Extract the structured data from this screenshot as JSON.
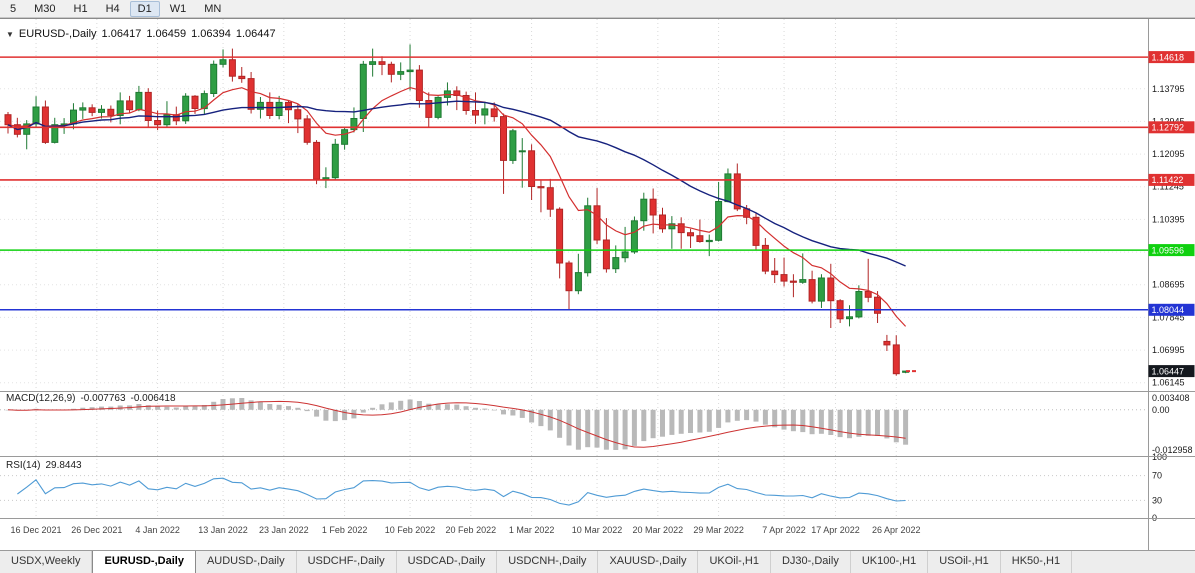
{
  "toolbar": {
    "buttons": [
      "5",
      "M30",
      "H1",
      "H4",
      "D1",
      "W1",
      "MN"
    ],
    "active": "D1"
  },
  "chart_header": {
    "dropdown_icon": "▼",
    "symbol": "EURUSD-,Daily",
    "open": "1.06417",
    "high": "1.06459",
    "low": "1.06394",
    "close": "1.06447"
  },
  "price_axis": {
    "grid_labels": [
      "1.13795",
      "1.12945",
      "1.12095",
      "1.11245",
      "1.10395",
      "1.09545",
      "1.08695",
      "1.07845",
      "1.06995",
      "1.06145"
    ],
    "current": {
      "value": "1.06447",
      "price": 1.06447,
      "bg": "#14181e",
      "text_color": "#ffffff"
    }
  },
  "macd": {
    "label": "MACD(12,26,9)",
    "value_main": "-0.007763",
    "value_signal": "-0.006418",
    "axis_max": "0.003408",
    "axis_zero": "0.00",
    "axis_min": "-0.012958",
    "fast": 12,
    "slow": 26,
    "signal_period": 9
  },
  "rsi": {
    "label": "RSI(14)",
    "value": "29.8443",
    "period": 14,
    "axis_labels": [
      {
        "text": "100",
        "v": 100
      },
      {
        "text": "70",
        "v": 70
      },
      {
        "text": "30",
        "v": 30
      },
      {
        "text": "0",
        "v": 0
      }
    ],
    "levels": [
      70,
      30
    ]
  },
  "time_axis": {
    "labels": [
      {
        "text": "16 Dec 2021",
        "i": 3
      },
      {
        "text": "26 Dec 2021",
        "i": 9.5
      },
      {
        "text": "4 Jan 2022",
        "i": 16
      },
      {
        "text": "13 Jan 2022",
        "i": 23
      },
      {
        "text": "23 Jan 2022",
        "i": 29.5
      },
      {
        "text": "1 Feb 2022",
        "i": 36
      },
      {
        "text": "10 Feb 2022",
        "i": 43
      },
      {
        "text": "20 Feb 2022",
        "i": 49.5
      },
      {
        "text": "1 Mar 2022",
        "i": 56
      },
      {
        "text": "10 Mar 2022",
        "i": 63
      },
      {
        "text": "20 Mar 2022",
        "i": 69.5
      },
      {
        "text": "29 Mar 2022",
        "i": 76
      },
      {
        "text": "7 Apr 2022",
        "i": 83
      },
      {
        "text": "17 Apr 2022",
        "i": 88.5
      },
      {
        "text": "26 Apr 2022",
        "i": 95
      }
    ]
  },
  "tabs": {
    "active_index": 1,
    "items": [
      "USDX,Weekly",
      "EURUSD-,Daily",
      "AUDUSD-,Daily",
      "USDCHF-,Daily",
      "USDCAD-,Daily",
      "USDCNH-,Daily",
      "XAUUSD-,Daily",
      "UKOil-,H1",
      "DJ30-,Daily",
      "UK100-,H1",
      "USOil-,H1",
      "HK50-,H1"
    ]
  },
  "colors": {
    "candle_up": "#2f9e44",
    "candle_up_stroke": "#1e7a33",
    "candle_down": "#e03131",
    "candle_down_stroke": "#b02525",
    "ma_fast": "#d32f2f",
    "ma_slow": "#16227e",
    "macd_hist": "#b9b9b9",
    "macd_signal": "#cc3333",
    "rsi_line": "#4f9bd5",
    "level_red": "#e03131",
    "level_green": "#0fd10f",
    "level_blue": "#2334d4",
    "grid_v": "#d9d9d9",
    "grid_h": "#e3e3e3",
    "separator": "#9a9a9a"
  },
  "chart_data": {
    "type": "candlestick",
    "symbol": "EURUSD-",
    "timeframe": "Daily",
    "ylim": [
      1.0593,
      1.1561
    ],
    "hlines": [
      {
        "label": "1.14618",
        "price": 1.14618,
        "color": "#e03131",
        "role": "resistance"
      },
      {
        "label": "1.12792",
        "price": 1.12792,
        "color": "#e03131",
        "role": "resistance"
      },
      {
        "label": "1.11422",
        "price": 1.11422,
        "color": "#e03131",
        "role": "resistance"
      },
      {
        "label": "1.09596",
        "price": 1.09596,
        "color": "#0fd10f",
        "role": "level"
      },
      {
        "label": "1.08044",
        "price": 1.08044,
        "color": "#2334d4",
        "role": "support"
      }
    ],
    "overlays": [
      {
        "name": "MA fast",
        "type": "ema",
        "period": 10,
        "color": "#d32f2f"
      },
      {
        "name": "MA slow",
        "type": "sma",
        "period": 30,
        "color": "#16227e"
      }
    ],
    "ohlc": [
      [
        "2021-12-13",
        1.1312,
        1.1319,
        1.1263,
        1.1286
      ],
      [
        "2021-12-14",
        1.1286,
        1.1304,
        1.1253,
        1.1261
      ],
      [
        "2021-12-15",
        1.1261,
        1.1298,
        1.1222,
        1.1288
      ],
      [
        "2021-12-16",
        1.1288,
        1.136,
        1.128,
        1.1332
      ],
      [
        "2021-12-17",
        1.1332,
        1.1349,
        1.1236,
        1.124
      ],
      [
        "2021-12-20",
        1.124,
        1.1304,
        1.1237,
        1.1286
      ],
      [
        "2021-12-21",
        1.1286,
        1.1303,
        1.1262,
        1.1288
      ],
      [
        "2021-12-22",
        1.1288,
        1.1342,
        1.1274,
        1.1324
      ],
      [
        "2021-12-23",
        1.1324,
        1.1344,
        1.1301,
        1.133
      ],
      [
        "2021-12-24",
        1.133,
        1.1339,
        1.1308,
        1.1318
      ],
      [
        "2021-12-27",
        1.1318,
        1.1337,
        1.1302,
        1.1326
      ],
      [
        "2021-12-28",
        1.1326,
        1.1336,
        1.1292,
        1.131
      ],
      [
        "2021-12-29",
        1.131,
        1.137,
        1.1287,
        1.1348
      ],
      [
        "2021-12-30",
        1.1348,
        1.1361,
        1.1316,
        1.1325
      ],
      [
        "2021-12-31",
        1.1325,
        1.1387,
        1.1321,
        1.137
      ],
      [
        "2022-01-03",
        1.137,
        1.1381,
        1.1279,
        1.1297
      ],
      [
        "2022-01-04",
        1.1297,
        1.1323,
        1.1272,
        1.1286
      ],
      [
        "2022-01-05",
        1.1286,
        1.1347,
        1.128,
        1.1312
      ],
      [
        "2022-01-06",
        1.1312,
        1.1333,
        1.1285,
        1.1296
      ],
      [
        "2022-01-07",
        1.1296,
        1.1368,
        1.1288,
        1.136
      ],
      [
        "2022-01-10",
        1.136,
        1.1363,
        1.1314,
        1.1328
      ],
      [
        "2022-01-11",
        1.1328,
        1.1375,
        1.1313,
        1.1367
      ],
      [
        "2022-01-12",
        1.1367,
        1.1453,
        1.1358,
        1.1443
      ],
      [
        "2022-01-13",
        1.1443,
        1.1482,
        1.1435,
        1.1455
      ],
      [
        "2022-01-14",
        1.1455,
        1.1484,
        1.1398,
        1.1412
      ],
      [
        "2022-01-17",
        1.1412,
        1.1436,
        1.1395,
        1.1406
      ],
      [
        "2022-01-18",
        1.1406,
        1.1423,
        1.1315,
        1.1326
      ],
      [
        "2022-01-19",
        1.1326,
        1.1358,
        1.1302,
        1.1344
      ],
      [
        "2022-01-20",
        1.1344,
        1.137,
        1.1301,
        1.131
      ],
      [
        "2022-01-21",
        1.131,
        1.1361,
        1.13,
        1.1344
      ],
      [
        "2022-01-24",
        1.1344,
        1.135,
        1.129,
        1.1325
      ],
      [
        "2022-01-25",
        1.1325,
        1.134,
        1.1264,
        1.1301
      ],
      [
        "2022-01-26",
        1.1301,
        1.1311,
        1.1234,
        1.124
      ],
      [
        "2022-01-27",
        1.124,
        1.1246,
        1.1131,
        1.1144
      ],
      [
        "2022-01-28",
        1.1144,
        1.1175,
        1.1121,
        1.1148
      ],
      [
        "2022-01-31",
        1.1148,
        1.1249,
        1.1141,
        1.1235
      ],
      [
        "2022-02-01",
        1.1235,
        1.1281,
        1.1221,
        1.1273
      ],
      [
        "2022-02-02",
        1.1273,
        1.1331,
        1.1266,
        1.1302
      ],
      [
        "2022-02-03",
        1.1302,
        1.1452,
        1.1267,
        1.1443
      ],
      [
        "2022-02-04",
        1.1443,
        1.1484,
        1.1411,
        1.145
      ],
      [
        "2022-02-07",
        1.145,
        1.1464,
        1.1415,
        1.1443
      ],
      [
        "2022-02-08",
        1.1443,
        1.145,
        1.1396,
        1.1417
      ],
      [
        "2022-02-09",
        1.1417,
        1.1448,
        1.1402,
        1.1424
      ],
      [
        "2022-02-10",
        1.1424,
        1.1495,
        1.1375,
        1.1428
      ],
      [
        "2022-02-11",
        1.1428,
        1.1441,
        1.133,
        1.1349
      ],
      [
        "2022-02-14",
        1.1349,
        1.137,
        1.1279,
        1.1305
      ],
      [
        "2022-02-15",
        1.1305,
        1.136,
        1.13,
        1.1357
      ],
      [
        "2022-02-16",
        1.1357,
        1.1396,
        1.1336,
        1.1374
      ],
      [
        "2022-02-17",
        1.1374,
        1.1386,
        1.1324,
        1.1362
      ],
      [
        "2022-02-18",
        1.1362,
        1.1372,
        1.1312,
        1.1323
      ],
      [
        "2022-02-21",
        1.1323,
        1.137,
        1.1288,
        1.1311
      ],
      [
        "2022-02-22",
        1.1311,
        1.1343,
        1.1287,
        1.1327
      ],
      [
        "2022-02-23",
        1.1327,
        1.1344,
        1.1294,
        1.1307
      ],
      [
        "2022-02-24",
        1.1307,
        1.1315,
        1.1106,
        1.1193
      ],
      [
        "2022-02-25",
        1.1193,
        1.1275,
        1.1184,
        1.127
      ],
      [
        "2022-02-28",
        1.1216,
        1.1251,
        1.1122,
        1.1218
      ],
      [
        "2022-03-01",
        1.1218,
        1.1235,
        1.109,
        1.1125
      ],
      [
        "2022-03-02",
        1.1125,
        1.1141,
        1.1058,
        1.1122
      ],
      [
        "2022-03-03",
        1.1122,
        1.1145,
        1.1046,
        1.1066
      ],
      [
        "2022-03-04",
        1.1066,
        1.1071,
        1.0886,
        1.0926
      ],
      [
        "2022-03-07",
        1.0926,
        1.0932,
        1.0806,
        1.0854
      ],
      [
        "2022-03-08",
        1.0854,
        1.095,
        1.0845,
        1.0901
      ],
      [
        "2022-03-09",
        1.0901,
        1.1096,
        1.0891,
        1.1075
      ],
      [
        "2022-03-10",
        1.1075,
        1.1121,
        1.0975,
        1.0986
      ],
      [
        "2022-03-11",
        1.0986,
        1.1043,
        1.0901,
        1.0911
      ],
      [
        "2022-03-14",
        1.0911,
        1.0972,
        1.09,
        1.094
      ],
      [
        "2022-03-15",
        1.094,
        1.102,
        1.0928,
        1.0955
      ],
      [
        "2022-03-16",
        1.0955,
        1.1047,
        1.095,
        1.1036
      ],
      [
        "2022-03-17",
        1.1036,
        1.1109,
        1.101,
        1.1092
      ],
      [
        "2022-03-18",
        1.1092,
        1.112,
        1.1003,
        1.1051
      ],
      [
        "2022-03-21",
        1.1051,
        1.107,
        1.1005,
        1.1015
      ],
      [
        "2022-03-22",
        1.1015,
        1.1048,
        1.0963,
        1.1028
      ],
      [
        "2022-03-23",
        1.1028,
        1.1045,
        1.0963,
        1.1005
      ],
      [
        "2022-03-24",
        1.1005,
        1.1015,
        1.0965,
        1.0997
      ],
      [
        "2022-03-25",
        1.0997,
        1.1039,
        1.0979,
        1.0982
      ],
      [
        "2022-03-28",
        1.0982,
        1.1,
        1.0944,
        1.0985
      ],
      [
        "2022-03-29",
        1.0985,
        1.1137,
        1.0982,
        1.1086
      ],
      [
        "2022-03-30",
        1.1086,
        1.1172,
        1.1084,
        1.1158
      ],
      [
        "2022-03-31",
        1.1158,
        1.1185,
        1.1061,
        1.1067
      ],
      [
        "2022-04-01",
        1.1067,
        1.1077,
        1.1027,
        1.1045
      ],
      [
        "2022-04-04",
        1.1045,
        1.1056,
        1.096,
        1.0972
      ],
      [
        "2022-04-05",
        1.0972,
        1.0991,
        1.0897,
        1.0905
      ],
      [
        "2022-04-06",
        1.0905,
        1.0939,
        1.0874,
        1.0896
      ],
      [
        "2022-04-07",
        1.0896,
        1.094,
        1.0865,
        1.0879
      ],
      [
        "2022-04-08",
        1.0879,
        1.0897,
        1.0837,
        1.0876
      ],
      [
        "2022-04-11",
        1.0876,
        1.0951,
        1.0872,
        1.0883
      ],
      [
        "2022-04-12",
        1.0883,
        1.0906,
        1.0821,
        1.0827
      ],
      [
        "2022-04-13",
        1.0827,
        1.0897,
        1.0809,
        1.0887
      ],
      [
        "2022-04-14",
        1.0887,
        1.0924,
        1.0757,
        1.0828
      ],
      [
        "2022-04-18",
        1.0828,
        1.0832,
        1.077,
        1.0781
      ],
      [
        "2022-04-19",
        1.0781,
        1.0816,
        1.0761,
        1.0786
      ],
      [
        "2022-04-20",
        1.0786,
        1.0868,
        1.0782,
        1.0852
      ],
      [
        "2022-04-21",
        1.0852,
        1.0937,
        1.0824,
        1.0837
      ],
      [
        "2022-04-22",
        1.0837,
        1.0853,
        1.077,
        1.0795
      ],
      [
        "2022-04-25",
        1.0722,
        1.0739,
        1.0697,
        1.0713
      ],
      [
        "2022-04-26",
        1.0713,
        1.0738,
        1.0633,
        1.0638
      ],
      [
        "2022-04-27",
        1.06417,
        1.06459,
        1.06394,
        1.06447
      ]
    ]
  }
}
